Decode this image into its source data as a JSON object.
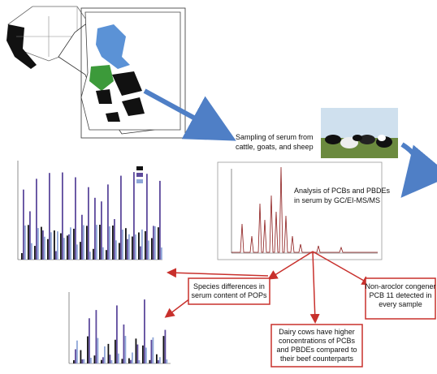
{
  "sampling": {
    "lines": [
      "Sampling of serum from",
      "cattle, goats, and sheep"
    ]
  },
  "analysis": {
    "lines": [
      "Analysis of PCBs and PBDEs",
      "in serum by GC/EI-MS/MS"
    ]
  },
  "findings": [
    {
      "lines": [
        "Species differences in",
        "serum content of POPs"
      ]
    },
    {
      "lines": [
        "Dairy cows have higher",
        "concentrations of PCBs",
        "and PBDEs compared to",
        "their beef counterparts"
      ]
    },
    {
      "lines": [
        "Non-aroclor congener",
        "PCB 11 detected in",
        "every sample"
      ]
    }
  ]
}
